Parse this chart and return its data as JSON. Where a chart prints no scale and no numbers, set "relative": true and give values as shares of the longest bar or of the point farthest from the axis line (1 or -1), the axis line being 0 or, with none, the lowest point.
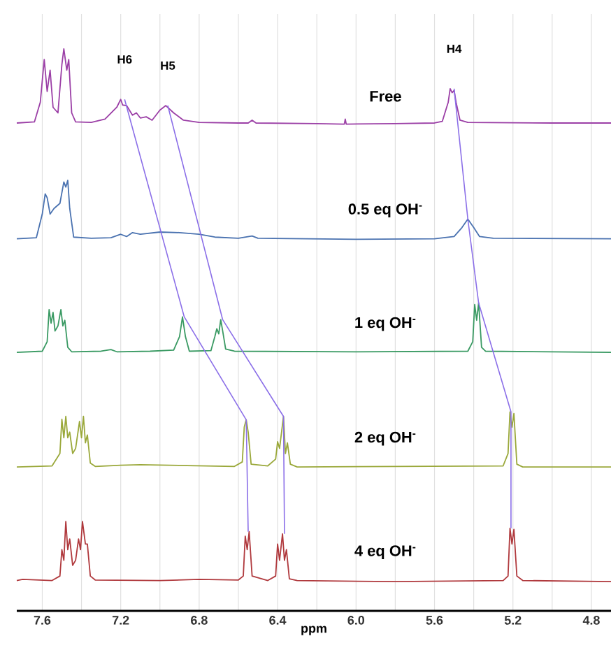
{
  "chart_data": {
    "type": "line",
    "relative": true,
    "xlabel": "ppm",
    "xlim": [
      7.73,
      4.7
    ],
    "xticks": [
      7.6,
      {
        "value": 7.4,
        "label": null
      },
      7.2,
      {
        "value": 7.0,
        "label": null
      },
      6.8,
      {
        "value": 6.6,
        "label": null
      },
      6.4,
      {
        "value": 6.2,
        "label": null
      },
      {
        "value": 6.0,
        "label": "6.0"
      },
      {
        "value": 5.8,
        "label": null
      },
      5.6,
      {
        "value": 5.4,
        "label": null
      },
      5.2,
      {
        "value": 5.0,
        "label": null
      },
      4.8
    ],
    "grid": true,
    "marker": "none",
    "line_style": "solid",
    "annotations": [
      "H6",
      "H5",
      "H4"
    ],
    "series": [
      {
        "name": "Free",
        "color": "#9b3fa6",
        "x": [
          7.73,
          7.64,
          7.61,
          7.59,
          7.575,
          7.56,
          7.545,
          7.52,
          7.5,
          7.49,
          7.475,
          7.465,
          7.45,
          7.43,
          7.35,
          7.28,
          7.22,
          7.2,
          7.19,
          7.17,
          7.14,
          7.12,
          7.1,
          7.07,
          7.04,
          7.0,
          6.97,
          6.93,
          6.88,
          6.8,
          6.6,
          6.55,
          6.53,
          6.51,
          6.2,
          6.06,
          6.055,
          6.05,
          5.8,
          5.6,
          5.56,
          5.53,
          5.52,
          5.51,
          5.5,
          5.49,
          5.47,
          5.43,
          5.0,
          4.7
        ],
        "values": [
          0.868,
          0.87,
          0.905,
          0.981,
          0.924,
          0.962,
          0.896,
          0.886,
          0.972,
          1,
          0.962,
          0.981,
          0.886,
          0.87,
          0.869,
          0.875,
          0.896,
          0.91,
          0.9,
          0.899,
          0.882,
          0.886,
          0.877,
          0.879,
          0.873,
          0.891,
          0.899,
          0.886,
          0.873,
          0.869,
          0.868,
          0.868,
          0.873,
          0.868,
          0.867,
          0.866,
          0.875,
          0.866,
          0.867,
          0.868,
          0.871,
          0.905,
          0.929,
          0.922,
          0.926,
          0.905,
          0.873,
          0.869,
          0.868,
          0.868
        ]
      },
      {
        "name": "0.5 eq OH$^{-}$",
        "color": "#4a72b0",
        "x": [
          7.73,
          7.63,
          7.6,
          7.585,
          7.575,
          7.56,
          7.54,
          7.51,
          7.49,
          7.48,
          7.47,
          7.46,
          7.44,
          7.35,
          7.25,
          7.2,
          7.17,
          7.14,
          7.1,
          7.0,
          6.9,
          6.8,
          6.72,
          6.6,
          6.53,
          6.5,
          6.0,
          5.6,
          5.5,
          5.46,
          5.43,
          5.4,
          5.37,
          5.3,
          4.7
        ],
        "values": [
          0.662,
          0.664,
          0.706,
          0.742,
          0.735,
          0.706,
          0.716,
          0.725,
          0.763,
          0.754,
          0.766,
          0.716,
          0.665,
          0.663,
          0.664,
          0.67,
          0.666,
          0.673,
          0.67,
          0.674,
          0.673,
          0.67,
          0.665,
          0.663,
          0.667,
          0.663,
          0.661,
          0.662,
          0.666,
          0.682,
          0.697,
          0.682,
          0.666,
          0.663,
          0.662
        ]
      },
      {
        "name": "1 eq OH$^{-}$",
        "color": "#3a9a63",
        "x": [
          7.73,
          7.6,
          7.575,
          7.565,
          7.555,
          7.545,
          7.535,
          7.52,
          7.505,
          7.495,
          7.485,
          7.47,
          7.45,
          7.3,
          7.25,
          7.22,
          7.05,
          6.93,
          6.9,
          6.885,
          6.87,
          6.85,
          6.74,
          6.72,
          6.71,
          6.7,
          6.69,
          6.68,
          6.665,
          6.62,
          6.0,
          5.43,
          5.405,
          5.395,
          5.385,
          5.375,
          5.36,
          5.34,
          4.7
        ],
        "values": [
          0.46,
          0.462,
          0.479,
          0.536,
          0.512,
          0.531,
          0.498,
          0.507,
          0.536,
          0.507,
          0.517,
          0.469,
          0.461,
          0.462,
          0.465,
          0.461,
          0.462,
          0.464,
          0.488,
          0.523,
          0.488,
          0.462,
          0.463,
          0.488,
          0.502,
          0.493,
          0.518,
          0.498,
          0.466,
          0.462,
          0.461,
          0.462,
          0.479,
          0.545,
          0.517,
          0.548,
          0.469,
          0.462,
          0.46
        ]
      },
      {
        "name": "2 eq OH$^{-}$",
        "color": "#9aa83a",
        "x": [
          7.73,
          7.55,
          7.51,
          7.5,
          7.49,
          7.48,
          7.47,
          7.46,
          7.445,
          7.43,
          7.41,
          7.4,
          7.39,
          7.38,
          7.37,
          7.355,
          7.33,
          7.2,
          7.1,
          6.62,
          6.58,
          6.57,
          6.56,
          6.55,
          6.535,
          6.45,
          6.41,
          6.4,
          6.39,
          6.37,
          6.36,
          6.35,
          6.335,
          6.3,
          5.8,
          5.25,
          5.225,
          5.215,
          5.205,
          5.195,
          5.18,
          5.15,
          4.7
        ],
        "values": [
          0.256,
          0.258,
          0.28,
          0.341,
          0.308,
          0.346,
          0.308,
          0.318,
          0.28,
          0.289,
          0.337,
          0.308,
          0.346,
          0.299,
          0.313,
          0.263,
          0.257,
          0.259,
          0.26,
          0.257,
          0.265,
          0.327,
          0.34,
          0.318,
          0.261,
          0.258,
          0.27,
          0.301,
          0.289,
          0.346,
          0.28,
          0.299,
          0.261,
          0.256,
          0.257,
          0.258,
          0.28,
          0.354,
          0.327,
          0.351,
          0.261,
          0.256,
          0.256
        ]
      },
      {
        "name": "4 eq OH$^{-}$",
        "color": "#b0393d",
        "x": [
          7.73,
          7.7,
          7.55,
          7.51,
          7.5,
          7.49,
          7.48,
          7.47,
          7.46,
          7.445,
          7.43,
          7.415,
          7.405,
          7.395,
          7.38,
          7.37,
          7.355,
          7.33,
          7.0,
          6.8,
          6.6,
          6.575,
          6.565,
          6.555,
          6.545,
          6.53,
          6.45,
          6.41,
          6.4,
          6.39,
          6.375,
          6.365,
          6.355,
          6.34,
          6.3,
          5.8,
          5.25,
          5.225,
          5.215,
          5.205,
          5.195,
          5.18,
          5.15,
          4.7
        ],
        "values": [
          0.054,
          0.056,
          0.054,
          0.062,
          0.109,
          0.09,
          0.159,
          0.109,
          0.128,
          0.081,
          0.09,
          0.128,
          0.109,
          0.159,
          0.119,
          0.119,
          0.062,
          0.055,
          0.054,
          0.056,
          0.055,
          0.062,
          0.133,
          0.109,
          0.141,
          0.062,
          0.054,
          0.062,
          0.119,
          0.09,
          0.137,
          0.09,
          0.109,
          0.057,
          0.054,
          0.052,
          0.054,
          0.062,
          0.147,
          0.119,
          0.145,
          0.062,
          0.054,
          0.052
        ]
      },
      {
        "color": "#8b6fe8",
        "x": [
          7.18,
          6.876,
          6.56,
          6.55
        ],
        "values": [
          0.91,
          0.523,
          0.34,
          0.141
        ]
      },
      {
        "color": "#8b6fe8",
        "x": [
          6.96,
          6.68,
          6.37,
          6.365
        ],
        "values": [
          0.899,
          0.518,
          0.346,
          0.137
        ]
      },
      {
        "color": "#8b6fe8",
        "x": [
          5.5,
          5.43,
          5.375,
          5.21,
          5.21
        ],
        "values": [
          0.929,
          0.697,
          0.548,
          0.354,
          0.147
        ]
      }
    ]
  }
}
